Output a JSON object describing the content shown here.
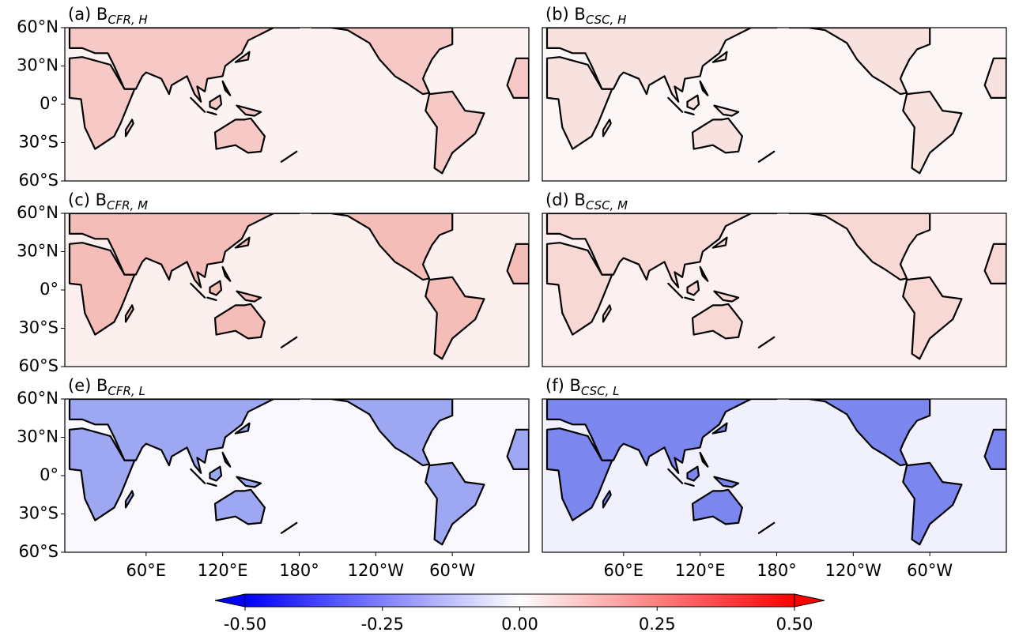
{
  "panels": [
    {
      "label": "(a) B",
      "subscript": "CFR, H"
    },
    {
      "label": "(b) B",
      "subscript": "CSC, H"
    },
    {
      "label": "(c) B",
      "subscript": "CFR, M"
    },
    {
      "label": "(d) B",
      "subscript": "CSC, M"
    },
    {
      "label": "(e) B",
      "subscript": "CFR, L"
    },
    {
      "label": "(f) B",
      "subscript": "CSC, L"
    }
  ],
  "latitude_labels": [
    "60°N",
    "30°N",
    "0°",
    "30°S",
    "60°S"
  ],
  "longitude_labels": [
    "60°E",
    "120°E",
    "180°",
    "120°W",
    "60°W"
  ],
  "colorbar": {
    "range": [
      -0.5,
      0.5
    ],
    "ticks": [
      {
        "value": -0.5,
        "label": "-0.50"
      },
      {
        "value": -0.25,
        "label": "-0.25"
      },
      {
        "value": 0,
        "label": "0.00"
      },
      {
        "value": 0.25,
        "label": "0.25"
      },
      {
        "value": 0.5,
        "label": "0.50"
      }
    ]
  }
}
